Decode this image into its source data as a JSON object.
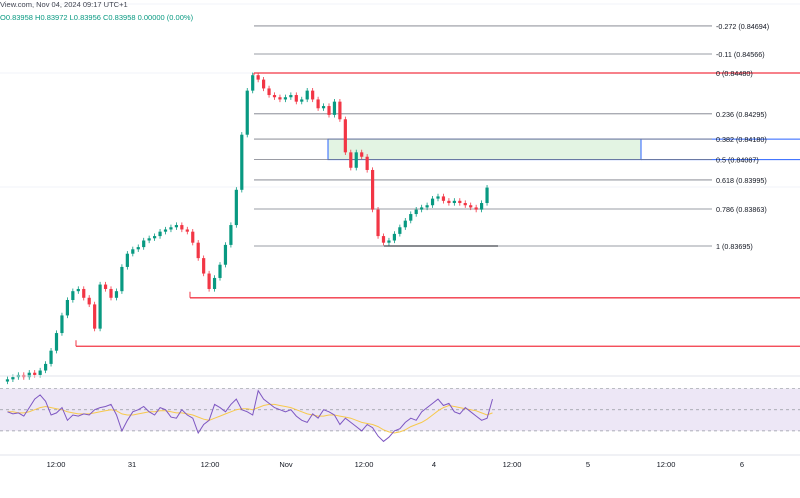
{
  "header": {
    "source_time": "View.com, Nov 04, 2024 09:17 UTC+1",
    "ohlc": "O0.83958  H0.83972  L0.83956  C0.83958  0.00000 (0.00%)"
  },
  "colors": {
    "bull": "#089981",
    "bear": "#f23645",
    "fib_line": "#787b86",
    "fib_zero": "#f23645",
    "zone_fill": "#e3f4e3",
    "zone_border": "#2962ff",
    "support": "#f23645",
    "rsi": "#7e57c2",
    "rsi_ma": "#f7c94c",
    "rsi_band": "#ede7f6"
  },
  "fib_levels": [
    {
      "ratio": -0.272,
      "label": "-0.272 (0.84694)"
    },
    {
      "ratio": -0.11,
      "label": "-0.11 (0.84566)"
    },
    {
      "ratio": 0,
      "label": "0 (0.84480)"
    },
    {
      "ratio": 0.236,
      "label": "0.236 (0.84295)"
    },
    {
      "ratio": 0.382,
      "label": "0.382 (0.84180)"
    },
    {
      "ratio": 0.5,
      "label": "0.5 (0.84087)"
    },
    {
      "ratio": 0.618,
      "label": "0.618 (0.83995)"
    },
    {
      "ratio": 0.786,
      "label": "0.786 (0.83863)"
    },
    {
      "ratio": 1,
      "label": "1 (0.83695)"
    }
  ],
  "time_axis": [
    "12:00",
    "31",
    "12:00",
    "Nov",
    "12:00",
    "4",
    "12:00",
    "5",
    "12:00",
    "6"
  ],
  "chart_data": {
    "type": "candlestick",
    "instrument_scale": "price",
    "fib_high": 0.8448,
    "fib_low": 0.83695,
    "support_levels": [
      0.8346,
      0.8324
    ],
    "price_path": [
      0.8308,
      0.8309,
      0.831,
      0.8311,
      0.831,
      0.8312,
      0.8311,
      0.8313,
      0.8316,
      0.8322,
      0.833,
      0.8338,
      0.8345,
      0.8349,
      0.835,
      0.8346,
      0.8343,
      0.8332,
      0.8352,
      0.835,
      0.8346,
      0.8349,
      0.836,
      0.8366,
      0.8368,
      0.8369,
      0.8372,
      0.8373,
      0.8374,
      0.8376,
      0.8377,
      0.8378,
      0.8379,
      0.8377,
      0.8376,
      0.8371,
      0.8364,
      0.8357,
      0.835,
      0.8355,
      0.8361,
      0.837,
      0.8379,
      0.8395,
      0.842,
      0.844,
      0.8447,
      0.8445,
      0.8441,
      0.8438,
      0.8437,
      0.8436,
      0.8437,
      0.8438,
      0.8435,
      0.8436,
      0.844,
      0.8436,
      0.8432,
      0.8433,
      0.8429,
      0.8435,
      0.8427,
      0.8412,
      0.8405,
      0.8412,
      0.841,
      0.8404,
      0.8386,
      0.8374,
      0.8371,
      0.8372,
      0.8375,
      0.8378,
      0.8381,
      0.8384,
      0.8386,
      0.8387,
      0.8388,
      0.8391,
      0.8392,
      0.839,
      0.8389,
      0.839,
      0.8389,
      0.8388,
      0.8387,
      0.8386,
      0.8389,
      0.8396
    ],
    "rsi": {
      "type": "line",
      "values": [
        48,
        46,
        47,
        44,
        52,
        60,
        64,
        58,
        45,
        47,
        52,
        40,
        45,
        44,
        46,
        45,
        50,
        52,
        53,
        55,
        45,
        30,
        40,
        48,
        50,
        53,
        48,
        45,
        52,
        50,
        43,
        42,
        50,
        45,
        42,
        28,
        36,
        40,
        55,
        52,
        48,
        55,
        60,
        50,
        48,
        45,
        68,
        60,
        56,
        52,
        50,
        48,
        50,
        44,
        40,
        38,
        46,
        42,
        50,
        48,
        45,
        36,
        42,
        38,
        34,
        30,
        36,
        33,
        25,
        20,
        24,
        30,
        32,
        38,
        42,
        40,
        48,
        52,
        56,
        60,
        54,
        56,
        48,
        46,
        52,
        48,
        44,
        40,
        42,
        60
      ],
      "ma_values": [
        48,
        48,
        47,
        47,
        48,
        50,
        52,
        53,
        52,
        51,
        50,
        48,
        47,
        46,
        46,
        46,
        47,
        48,
        49,
        50,
        49,
        46,
        45,
        45,
        46,
        47,
        48,
        48,
        49,
        49,
        48,
        47,
        47,
        46,
        45,
        43,
        41,
        40,
        42,
        44,
        46,
        48,
        50,
        51,
        51,
        50,
        52,
        54,
        55,
        55,
        54,
        53,
        52,
        50,
        48,
        46,
        45,
        44,
        44,
        45,
        45,
        44,
        43,
        42,
        40,
        38,
        37,
        36,
        34,
        31,
        29,
        28,
        29,
        31,
        34,
        36,
        38,
        41,
        45,
        49,
        52,
        54,
        53,
        52,
        51,
        50,
        49,
        47,
        45,
        47
      ],
      "upper_band": 70,
      "lower_band": 30,
      "mid": 50
    }
  }
}
